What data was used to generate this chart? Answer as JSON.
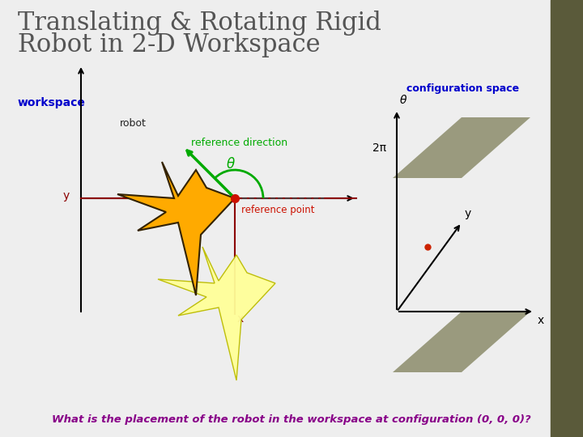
{
  "title_line1": "Translating & Rotating Rigid",
  "title_line2": "Robot in 2-D Workspace",
  "title_color": "#555555",
  "title_fontsize": 22,
  "bg_color": "#eeeeee",
  "workspace_label": "workspace",
  "workspace_label_color": "#0000cc",
  "config_space_label": "configuration space",
  "config_space_color": "#0000cc",
  "robot_label": "robot",
  "ref_dir_label": "reference direction",
  "ref_dir_color": "#00aa00",
  "ref_pt_label": "reference point",
  "ref_pt_color": "#cc1100",
  "theta_label": "θ",
  "axis_color": "#333333",
  "workspace_axis_color": "#800000",
  "star_color_orange": "#ffaa00",
  "star_color_yellow": "#ffff99",
  "star_outline_orange": "#332200",
  "star_outline_yellow": "#bbbb00",
  "parallelogram_color": "#8b8c6a",
  "dot_color": "#cc2200",
  "bottom_text": "What is the placement of the robot in the workspace at configuration (0, 0, 0)?",
  "bottom_text_color": "#880088",
  "two_pi_label": "2π",
  "x_label": "x",
  "y_label": "y",
  "theta_axis_label": "θ",
  "dark_bar_color": "#5a5a3a",
  "dark_bar2_color": "#6a6a4a"
}
